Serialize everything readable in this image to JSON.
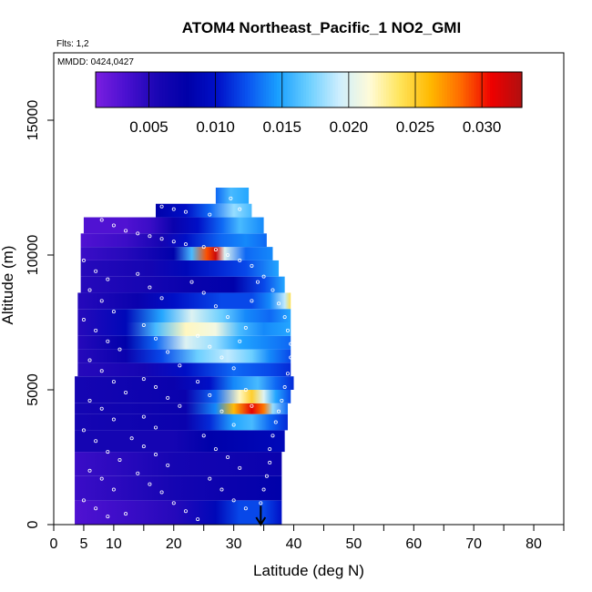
{
  "chart_data": {
    "type": "heatmap",
    "title": "ATOM4 Northeast_Pacific_1 NO2_GMI",
    "annotations": [
      "Flts: 1,2",
      "MMDD: 0424,0427"
    ],
    "xlabel": "Latitude (deg N)",
    "ylabel": "Altitude (m)",
    "xlim": [
      0,
      85
    ],
    "ylim": [
      0,
      17500
    ],
    "x_ticks": [
      0,
      5,
      10,
      20,
      30,
      40,
      50,
      60,
      70,
      80
    ],
    "y_ticks": [
      0,
      5000,
      10000,
      15000
    ],
    "colorbar": {
      "min": 0.001,
      "max": 0.033,
      "ticks": [
        0.005,
        0.01,
        0.015,
        0.02,
        0.025,
        0.03
      ],
      "tick_labels": [
        "0.005",
        "0.010",
        "0.015",
        "0.020",
        "0.025",
        "0.030"
      ],
      "colors": [
        "#7a1fe0",
        "#4a10d0",
        "#1a06b4",
        "#0000a8",
        "#0010c8",
        "#0a55f0",
        "#1aa0ff",
        "#6ccfff",
        "#cdeefe",
        "#fffbd8",
        "#ffe45a",
        "#ffb800",
        "#ff6a00",
        "#ee0000",
        "#b01010"
      ]
    },
    "arrow_marker": {
      "x": 34.5,
      "y_from": 700,
      "y_to": 0
    },
    "layers": [
      {
        "alt": [
          0,
          900
        ],
        "lat_range": [
          3.5,
          38
        ],
        "stops": [
          [
            3.5,
            0.003
          ],
          [
            12,
            0.004
          ],
          [
            20,
            0.005
          ],
          [
            27,
            0.009
          ],
          [
            31,
            0.012
          ],
          [
            35,
            0.012
          ],
          [
            38,
            0.01
          ]
        ]
      },
      {
        "alt": [
          900,
          1800
        ],
        "lat_range": [
          3.5,
          38
        ],
        "stops": [
          [
            3.5,
            0.004
          ],
          [
            20,
            0.006
          ],
          [
            30,
            0.007
          ],
          [
            38,
            0.008
          ]
        ]
      },
      {
        "alt": [
          1800,
          2700
        ],
        "lat_range": [
          3.5,
          38
        ],
        "stops": [
          [
            3.5,
            0.004
          ],
          [
            20,
            0.006
          ],
          [
            38,
            0.007
          ]
        ]
      },
      {
        "alt": [
          2700,
          3500
        ],
        "lat_range": [
          3.5,
          38.5
        ],
        "stops": [
          [
            3.5,
            0.006
          ],
          [
            20,
            0.006
          ],
          [
            26,
            0.008
          ],
          [
            38,
            0.009
          ]
        ]
      },
      {
        "alt": [
          3500,
          4100
        ],
        "lat_range": [
          3.5,
          39
        ],
        "stops": [
          [
            3.5,
            0.006
          ],
          [
            22,
            0.007
          ],
          [
            26,
            0.011
          ],
          [
            30,
            0.015
          ],
          [
            33,
            0.016
          ],
          [
            36,
            0.013
          ],
          [
            39,
            0.011
          ]
        ]
      },
      {
        "alt": [
          4100,
          4500
        ],
        "lat_range": [
          3.5,
          39
        ],
        "stops": [
          [
            3.5,
            0.006
          ],
          [
            22,
            0.007
          ],
          [
            27,
            0.014
          ],
          [
            30,
            0.026
          ],
          [
            33,
            0.031
          ],
          [
            35,
            0.028
          ],
          [
            36.5,
            0.018
          ],
          [
            39,
            0.013
          ]
        ]
      },
      {
        "alt": [
          4500,
          5000
        ],
        "lat_range": [
          3.5,
          39.5
        ],
        "stops": [
          [
            3.5,
            0.006
          ],
          [
            22,
            0.007
          ],
          [
            27,
            0.013
          ],
          [
            31,
            0.022
          ],
          [
            33,
            0.025
          ],
          [
            35,
            0.02
          ],
          [
            37,
            0.015
          ],
          [
            39.5,
            0.012
          ]
        ]
      },
      {
        "alt": [
          5000,
          5500
        ],
        "lat_range": [
          3.5,
          40
        ],
        "stops": [
          [
            3.5,
            0.006
          ],
          [
            20,
            0.007
          ],
          [
            26,
            0.01
          ],
          [
            30,
            0.014
          ],
          [
            34,
            0.016
          ],
          [
            37,
            0.013
          ],
          [
            40,
            0.011
          ]
        ]
      },
      {
        "alt": [
          5500,
          6000
        ],
        "lat_range": [
          4,
          39.5
        ],
        "stops": [
          [
            4,
            0.005
          ],
          [
            15,
            0.006
          ],
          [
            22,
            0.01
          ],
          [
            30,
            0.013
          ],
          [
            36,
            0.012
          ],
          [
            39.5,
            0.011
          ]
        ]
      },
      {
        "alt": [
          6000,
          6500
        ],
        "lat_range": [
          4,
          39.5
        ],
        "stops": [
          [
            4,
            0.005
          ],
          [
            12,
            0.007
          ],
          [
            18,
            0.012
          ],
          [
            24,
            0.017
          ],
          [
            29,
            0.019
          ],
          [
            33,
            0.017
          ],
          [
            36,
            0.014
          ],
          [
            39.5,
            0.012
          ]
        ]
      },
      {
        "alt": [
          6500,
          7000
        ],
        "lat_range": [
          4,
          39.5
        ],
        "stops": [
          [
            4,
            0.005
          ],
          [
            12,
            0.008
          ],
          [
            17,
            0.013
          ],
          [
            22,
            0.02
          ],
          [
            27,
            0.018
          ],
          [
            31,
            0.015
          ],
          [
            35,
            0.014
          ],
          [
            39.5,
            0.013
          ]
        ]
      },
      {
        "alt": [
          7000,
          7500
        ],
        "lat_range": [
          4,
          39.5
        ],
        "stops": [
          [
            4,
            0.005
          ],
          [
            12,
            0.009
          ],
          [
            17,
            0.016
          ],
          [
            22,
            0.022
          ],
          [
            27,
            0.021
          ],
          [
            31,
            0.016
          ],
          [
            35,
            0.014
          ],
          [
            39.5,
            0.015
          ]
        ]
      },
      {
        "alt": [
          7500,
          8000
        ],
        "lat_range": [
          4,
          39.5
        ],
        "stops": [
          [
            4,
            0.005
          ],
          [
            12,
            0.009
          ],
          [
            18,
            0.015
          ],
          [
            23,
            0.02
          ],
          [
            28,
            0.017
          ],
          [
            32,
            0.014
          ],
          [
            36,
            0.013
          ],
          [
            39.5,
            0.015
          ]
        ]
      },
      {
        "alt": [
          8000,
          8600
        ],
        "lat_range": [
          4,
          39.5
        ],
        "stops": [
          [
            4,
            0.005
          ],
          [
            14,
            0.007
          ],
          [
            20,
            0.01
          ],
          [
            28,
            0.012
          ],
          [
            33,
            0.012
          ],
          [
            36,
            0.014
          ],
          [
            38.5,
            0.019
          ],
          [
            39.5,
            0.024
          ]
        ]
      },
      {
        "alt": [
          8600,
          9200
        ],
        "lat_range": [
          4.5,
          38.5
        ],
        "stops": [
          [
            4.5,
            0.005
          ],
          [
            16,
            0.006
          ],
          [
            22,
            0.007
          ],
          [
            30,
            0.008
          ],
          [
            35,
            0.012
          ],
          [
            38.5,
            0.015
          ]
        ]
      },
      {
        "alt": [
          9200,
          9800
        ],
        "lat_range": [
          4.5,
          37.5
        ],
        "stops": [
          [
            4.5,
            0.005
          ],
          [
            16,
            0.006
          ],
          [
            22,
            0.009
          ],
          [
            28,
            0.011
          ],
          [
            32,
            0.012
          ],
          [
            37.5,
            0.015
          ]
        ]
      },
      {
        "alt": [
          9800,
          10300
        ],
        "lat_range": [
          4.5,
          36.5
        ],
        "stops": [
          [
            4.5,
            0.004
          ],
          [
            12,
            0.005
          ],
          [
            20,
            0.008
          ],
          [
            23,
            0.016
          ],
          [
            25.5,
            0.029
          ],
          [
            27,
            0.032
          ],
          [
            28.5,
            0.02
          ],
          [
            32,
            0.013
          ],
          [
            36.5,
            0.014
          ]
        ]
      },
      {
        "alt": [
          10300,
          10800
        ],
        "lat_range": [
          4.5,
          35.5
        ],
        "stops": [
          [
            4.5,
            0.003
          ],
          [
            12,
            0.004
          ],
          [
            18,
            0.006
          ],
          [
            22,
            0.01
          ],
          [
            28,
            0.013
          ],
          [
            32,
            0.014
          ],
          [
            35.5,
            0.013
          ]
        ]
      },
      {
        "alt": [
          10800,
          11400
        ],
        "lat_range": [
          5,
          35
        ],
        "stops": [
          [
            5,
            0.003
          ],
          [
            12,
            0.003
          ],
          [
            16,
            0.004
          ],
          [
            20,
            0.007
          ],
          [
            24,
            0.01
          ],
          [
            28,
            0.013
          ],
          [
            31,
            0.016
          ],
          [
            35,
            0.014
          ]
        ]
      },
      {
        "alt": [
          11400,
          11900
        ],
        "lat_range": [
          17,
          33
        ],
        "stops": [
          [
            17,
            0.008
          ],
          [
            22,
            0.01
          ],
          [
            26,
            0.013
          ],
          [
            30,
            0.018
          ],
          [
            33,
            0.016
          ]
        ]
      },
      {
        "alt": [
          11900,
          12500
        ],
        "lat_range": [
          27,
          32.5
        ],
        "stops": [
          [
            27,
            0.013
          ],
          [
            29.5,
            0.016
          ],
          [
            32.5,
            0.015
          ]
        ]
      }
    ],
    "observations": [
      [
        6,
        11500
      ],
      [
        8,
        11300
      ],
      [
        10,
        11100
      ],
      [
        12,
        10900
      ],
      [
        14,
        10800
      ],
      [
        16,
        10700
      ],
      [
        18,
        10600
      ],
      [
        20,
        10500
      ],
      [
        22,
        10400
      ],
      [
        25,
        10300
      ],
      [
        27,
        10200
      ],
      [
        29,
        10000
      ],
      [
        31,
        9800
      ],
      [
        33,
        9600
      ],
      [
        35,
        9200
      ],
      [
        36.5,
        8700
      ],
      [
        37.5,
        8200
      ],
      [
        38.5,
        7700
      ],
      [
        39,
        7200
      ],
      [
        39.5,
        6700
      ],
      [
        39.5,
        6200
      ],
      [
        39,
        5600
      ],
      [
        38.5,
        5100
      ],
      [
        38,
        4600
      ],
      [
        37.5,
        4200
      ],
      [
        37,
        3800
      ],
      [
        36.5,
        3300
      ],
      [
        36,
        2800
      ],
      [
        36,
        2300
      ],
      [
        35.5,
        1800
      ],
      [
        35,
        1300
      ],
      [
        34.5,
        800
      ],
      [
        5,
        9800
      ],
      [
        7,
        9400
      ],
      [
        9,
        9100
      ],
      [
        6,
        8700
      ],
      [
        8,
        8300
      ],
      [
        10,
        7900
      ],
      [
        5,
        7600
      ],
      [
        7,
        7200
      ],
      [
        9,
        6800
      ],
      [
        11,
        6500
      ],
      [
        6,
        6100
      ],
      [
        8,
        5700
      ],
      [
        10,
        5300
      ],
      [
        12,
        4900
      ],
      [
        6,
        4600
      ],
      [
        8,
        4300
      ],
      [
        10,
        3900
      ],
      [
        5,
        3500
      ],
      [
        7,
        3100
      ],
      [
        9,
        2700
      ],
      [
        11,
        2400
      ],
      [
        6,
        2000
      ],
      [
        8,
        1700
      ],
      [
        10,
        1300
      ],
      [
        5,
        900
      ],
      [
        7,
        600
      ],
      [
        9,
        300
      ],
      [
        14,
        9300
      ],
      [
        16,
        8800
      ],
      [
        18,
        8400
      ],
      [
        15,
        7400
      ],
      [
        17,
        6900
      ],
      [
        19,
        6400
      ],
      [
        21,
        5900
      ],
      [
        15,
        5400
      ],
      [
        17,
        5100
      ],
      [
        19,
        4700
      ],
      [
        21,
        4400
      ],
      [
        15,
        4000
      ],
      [
        17,
        3600
      ],
      [
        13,
        3200
      ],
      [
        15,
        2900
      ],
      [
        17,
        2600
      ],
      [
        19,
        2200
      ],
      [
        14,
        1900
      ],
      [
        16,
        1500
      ],
      [
        18,
        1200
      ],
      [
        20,
        800
      ],
      [
        22,
        500
      ],
      [
        24,
        200
      ],
      [
        12,
        400
      ],
      [
        23,
        9000
      ],
      [
        25,
        8600
      ],
      [
        27,
        8100
      ],
      [
        29,
        7700
      ],
      [
        24,
        7000
      ],
      [
        26,
        6600
      ],
      [
        28,
        6200
      ],
      [
        30,
        5800
      ],
      [
        24,
        5300
      ],
      [
        26,
        4800
      ],
      [
        28,
        4200
      ],
      [
        30,
        3700
      ],
      [
        25,
        3300
      ],
      [
        27,
        2800
      ],
      [
        29,
        2500
      ],
      [
        31,
        2100
      ],
      [
        26,
        1700
      ],
      [
        28,
        1300
      ],
      [
        30,
        900
      ],
      [
        32,
        600
      ],
      [
        33,
        4400
      ],
      [
        32,
        5000
      ],
      [
        31,
        6800
      ],
      [
        32,
        7300
      ],
      [
        33,
        8300
      ],
      [
        34,
        9000
      ],
      [
        29.5,
        12100
      ],
      [
        31,
        11700
      ],
      [
        26,
        11500
      ],
      [
        22,
        11600
      ],
      [
        20,
        11700
      ],
      [
        18,
        11800
      ]
    ]
  }
}
